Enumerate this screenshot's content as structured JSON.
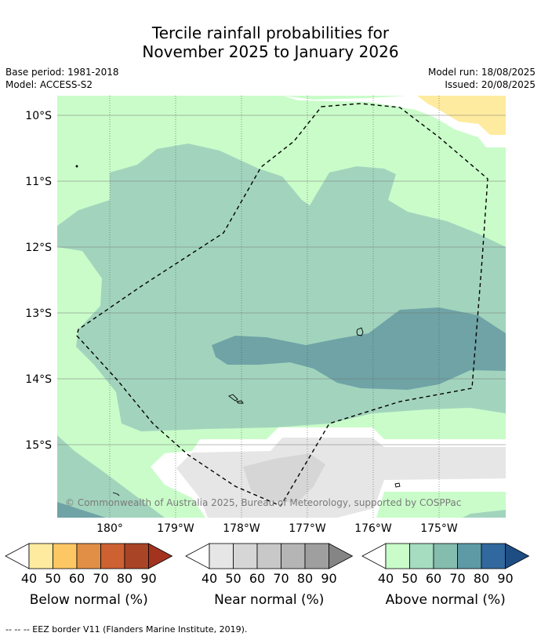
{
  "title_line1": "Tercile rainfall probabilities for",
  "title_line2": "November 2025 to January 2026",
  "meta_left": [
    "Base period: 1981-2018",
    "Model: ACCESS-S2"
  ],
  "meta_right": [
    "Model run: 18/08/2025",
    "Issued: 20/08/2025"
  ],
  "lat_labels": [
    "10°S",
    "11°S",
    "12°S",
    "13°S",
    "14°S",
    "15°S"
  ],
  "lon_labels": [
    "180°",
    "179°W",
    "178°W",
    "177°W",
    "176°W",
    "175°W"
  ],
  "copyright": "© Commonwealth of Australia 2025, Bureau of Meteorology, supported by COSPPac",
  "legends": [
    {
      "title": "Below normal (%)",
      "ticks": [
        "40",
        "50",
        "60",
        "70",
        "80",
        "90"
      ],
      "colors": [
        "#ffeb9f",
        "#fdc764",
        "#e18f47",
        "#cd6132",
        "#a94427",
        "#a3331f"
      ]
    },
    {
      "title": "Near normal (%)",
      "ticks": [
        "40",
        "50",
        "60",
        "70",
        "80",
        "90"
      ],
      "colors": [
        "#e6e6e6",
        "#d6d6d6",
        "#c8c8c8",
        "#b5b5b5",
        "#9f9f9f",
        "#858585"
      ]
    },
    {
      "title": "Above normal (%)",
      "ticks": [
        "40",
        "50",
        "60",
        "70",
        "80",
        "90"
      ],
      "colors": [
        "#c9fcc9",
        "#a6dcc0",
        "#84bcae",
        "#5d9aa6",
        "#31689d",
        "#1e4d84"
      ]
    }
  ],
  "footer": "--  --  -- EEZ border V11 (Flanders Marine Institute, 2019)."
}
